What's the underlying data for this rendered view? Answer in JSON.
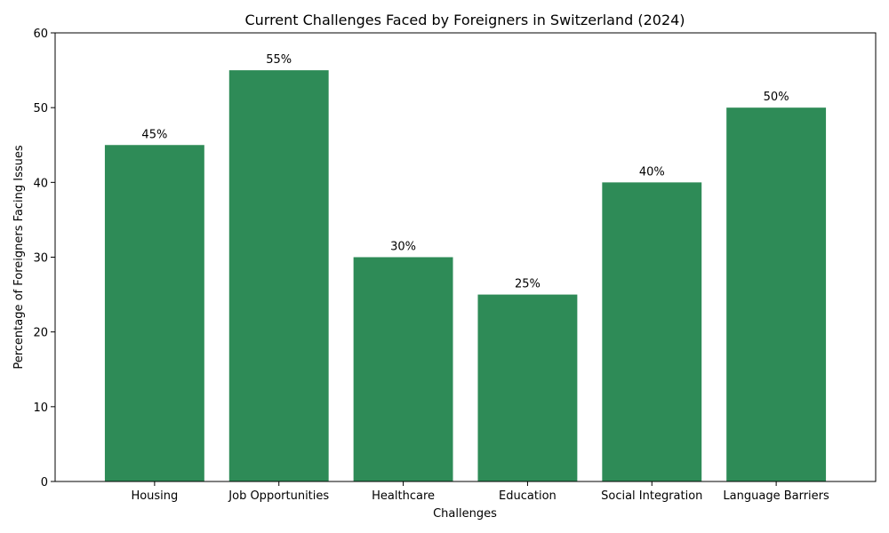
{
  "chart_data": {
    "type": "bar",
    "title": "Current Challenges Faced by Foreigners in Switzerland (2024)",
    "xlabel": "Challenges",
    "ylabel": "Percentage of Foreigners Facing Issues",
    "categories": [
      "Housing",
      "Job Opportunities",
      "Healthcare",
      "Education",
      "Social Integration",
      "Language Barriers"
    ],
    "values": [
      45,
      55,
      30,
      25,
      40,
      50
    ],
    "data_labels": [
      "45%",
      "55%",
      "30%",
      "25%",
      "40%",
      "50%"
    ],
    "ylim": [
      0,
      60
    ],
    "yticks": [
      0,
      10,
      20,
      30,
      40,
      50,
      60
    ],
    "bar_color": "#2e8b57",
    "grid": false,
    "legend": false
  }
}
